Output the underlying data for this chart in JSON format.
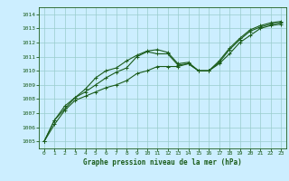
{
  "title": "Graphe pression niveau de la mer (hPa)",
  "bg_color": "#cceeff",
  "grid_color": "#99cccc",
  "line_color": "#1a5c1a",
  "marker_color": "#1a5c1a",
  "xlim": [
    -0.5,
    23.5
  ],
  "ylim": [
    1004.5,
    1014.5
  ],
  "xticks": [
    0,
    1,
    2,
    3,
    4,
    5,
    6,
    7,
    8,
    9,
    10,
    11,
    12,
    13,
    14,
    15,
    16,
    17,
    18,
    19,
    20,
    21,
    22,
    23
  ],
  "yticks": [
    1005,
    1006,
    1007,
    1008,
    1009,
    1010,
    1011,
    1012,
    1013,
    1014
  ],
  "series": [
    [
      1005.0,
      1006.2,
      1007.2,
      1007.9,
      1008.2,
      1008.5,
      1008.8,
      1009.0,
      1009.3,
      1009.8,
      1010.0,
      1010.3,
      1010.3,
      1010.3,
      1010.5,
      1010.0,
      1010.0,
      1010.5,
      1011.2,
      1012.0,
      1012.5,
      1013.0,
      1013.2,
      1013.3
    ],
    [
      1005.0,
      1006.5,
      1007.3,
      1008.1,
      1008.5,
      1009.0,
      1009.5,
      1009.9,
      1010.2,
      1011.0,
      1011.35,
      1011.2,
      1011.2,
      1010.4,
      1010.5,
      1010.0,
      1010.0,
      1010.6,
      1011.5,
      1012.2,
      1012.8,
      1013.1,
      1013.3,
      1013.4
    ],
    [
      1005.0,
      1006.5,
      1007.5,
      1008.1,
      1008.7,
      1009.5,
      1010.0,
      1010.2,
      1010.7,
      1011.1,
      1011.4,
      1011.5,
      1011.3,
      1010.5,
      1010.6,
      1010.0,
      1010.0,
      1010.7,
      1011.6,
      1012.3,
      1012.9,
      1013.2,
      1013.4,
      1013.5
    ]
  ]
}
